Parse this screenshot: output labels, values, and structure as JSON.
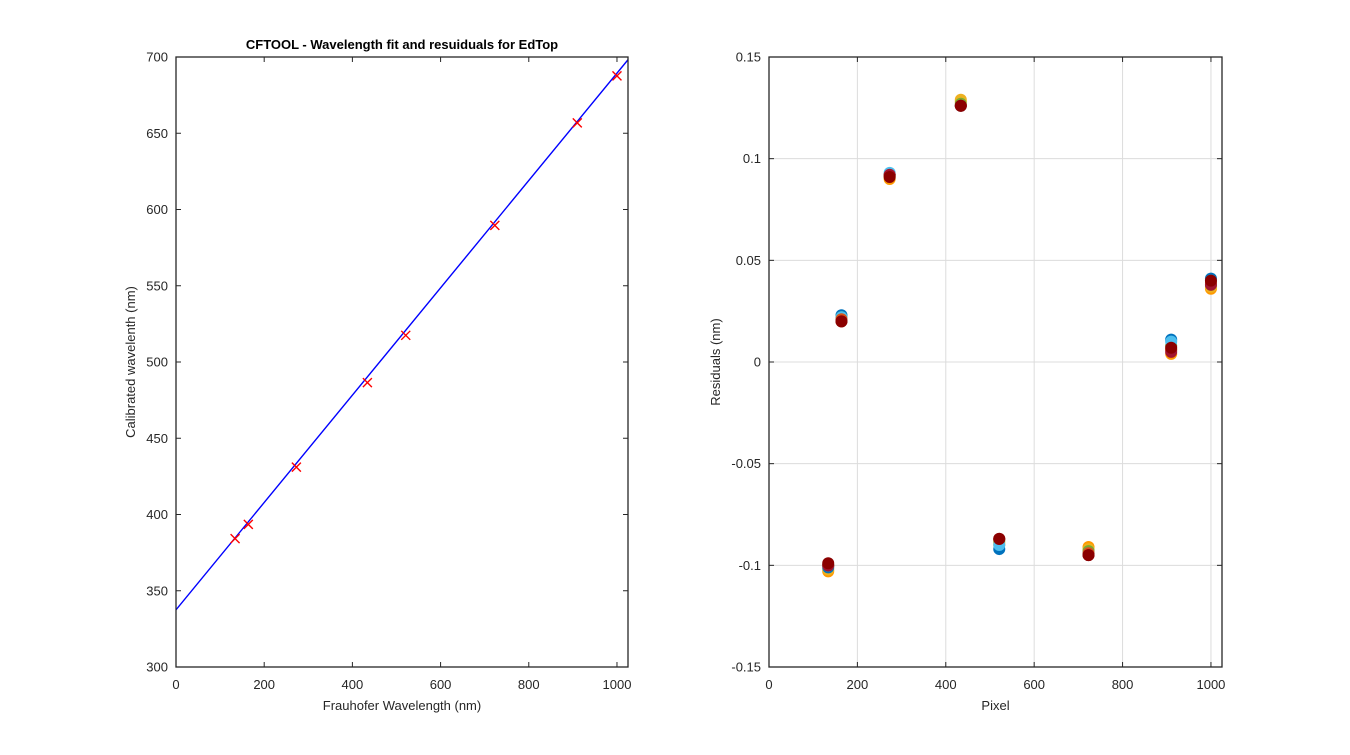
{
  "chart_data": [
    {
      "type": "line",
      "title": "CFTOOL - Wavelength fit and resuiduals for EdTop",
      "xlabel": "Frauhofer Wavelength (nm)",
      "ylabel": "Calibrated wavelenth (nm)",
      "xlim": [
        0,
        1025
      ],
      "ylim": [
        300,
        700
      ],
      "xticks": [
        0,
        200,
        400,
        600,
        800,
        1000
      ],
      "yticks": [
        300,
        350,
        400,
        450,
        500,
        550,
        600,
        650,
        700
      ],
      "grid": false,
      "series": [
        {
          "kind": "line",
          "color": "#0000ff",
          "x": [
            0,
            1025
          ],
          "y": [
            337.5,
            698.2
          ]
        },
        {
          "kind": "markers",
          "marker": "x",
          "color": "#ff0000",
          "x": [
            134,
            164,
            273,
            434,
            521,
            723,
            910,
            1000
          ],
          "y": [
            384.2,
            393.5,
            431.1,
            486.5,
            517.5,
            589.6,
            656.8,
            687.6
          ]
        }
      ]
    },
    {
      "type": "scatter",
      "title": "",
      "xlabel": "Pixel",
      "ylabel": "Residuals  (nm)",
      "xlim": [
        0,
        1025
      ],
      "ylim": [
        -0.15,
        0.15
      ],
      "xticks": [
        0,
        200,
        400,
        600,
        800,
        1000
      ],
      "yticks": [
        -0.15,
        -0.1,
        -0.05,
        0,
        0.05,
        0.1,
        0.15
      ],
      "ytick_labels": [
        "-0.15",
        "-0.1",
        "-0.05",
        "0",
        "0.05",
        "0.1",
        "0.15"
      ],
      "grid": true,
      "x": [
        134,
        164,
        273,
        434,
        521,
        723,
        910,
        1000
      ],
      "series": [
        {
          "color": "#ff9900",
          "values": [
            -0.103,
            0.02,
            0.09,
            0.128,
            -0.09,
            -0.091,
            0.004,
            0.036
          ]
        },
        {
          "color": "#edb120",
          "values": [
            -0.102,
            0.021,
            0.091,
            0.129,
            -0.089,
            -0.092,
            0.006,
            0.037
          ]
        },
        {
          "color": "#0072bd",
          "values": [
            -0.101,
            0.023,
            0.092,
            0.126,
            -0.092,
            -0.094,
            0.011,
            0.041
          ]
        },
        {
          "color": "#77ac30",
          "values": [
            -0.1,
            0.022,
            0.092,
            0.127,
            -0.088,
            -0.093,
            0.008,
            0.038
          ]
        },
        {
          "color": "#4dbeee",
          "values": [
            -0.1,
            0.022,
            0.093,
            0.126,
            -0.09,
            -0.094,
            0.01,
            0.04
          ]
        },
        {
          "color": "#d95319",
          "values": [
            -0.1,
            0.021,
            0.092,
            0.126,
            -0.087,
            -0.094,
            0.006,
            0.039
          ]
        },
        {
          "color": "#a2142f",
          "values": [
            -0.1,
            0.02,
            0.092,
            0.126,
            -0.087,
            -0.095,
            0.005,
            0.038
          ]
        },
        {
          "color": "#8b0000",
          "values": [
            -0.099,
            0.02,
            0.091,
            0.126,
            -0.087,
            -0.095,
            0.007,
            0.04
          ]
        }
      ]
    }
  ]
}
